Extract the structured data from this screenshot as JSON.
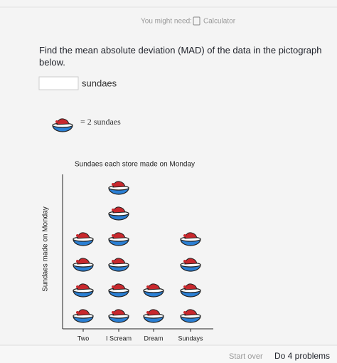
{
  "toolbar": {
    "hint": "You might need:",
    "tool": "Calculator"
  },
  "question": {
    "prompt": "Find the mean absolute deviation (MAD) of the data in the pictograph below.",
    "unit": "sundaes"
  },
  "key": {
    "text": "= 2 sundaes"
  },
  "pictograph": {
    "title": "Sundaes each store made on Monday",
    "y_label": "Sundaes made on Monday",
    "categories": [
      "Two",
      "I Scream",
      "Dream",
      "Sundays"
    ],
    "counts": [
      4,
      6,
      2,
      4
    ]
  },
  "footer": {
    "start_over": "Start over",
    "progress": "Do 4 problems"
  }
}
